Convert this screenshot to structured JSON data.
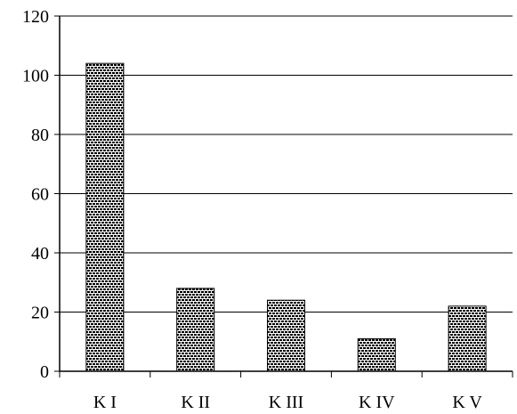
{
  "chart_data": {
    "type": "bar",
    "title": "",
    "xlabel": "",
    "ylabel": "",
    "categories": [
      "K I",
      "K II",
      "K III",
      "K IV",
      "K V"
    ],
    "values": [
      104,
      28,
      24,
      11,
      22
    ],
    "ylim": [
      0,
      120
    ],
    "yticks": [
      0,
      20,
      40,
      60,
      80,
      100,
      120
    ],
    "grid": true,
    "legend": "none",
    "bar_fill": "brick pattern",
    "colors": {
      "bar_mortar": "#ffffff",
      "bar_brick": "#000000",
      "grid": "#000000",
      "axis": "#000000"
    }
  }
}
